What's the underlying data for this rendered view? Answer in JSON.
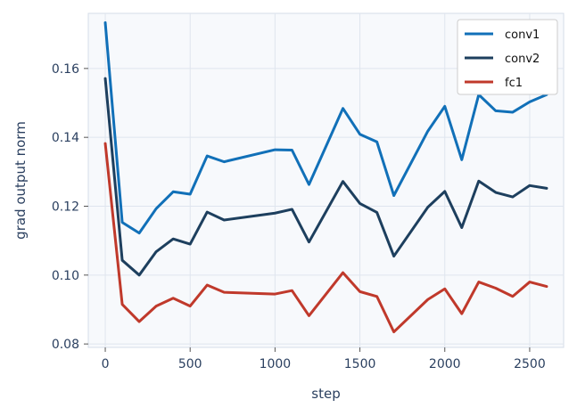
{
  "chart_data": {
    "type": "line",
    "title": "",
    "xlabel": "step",
    "ylabel": "grad output norm",
    "xlim": [
      -100,
      2700
    ],
    "ylim": [
      0.079,
      0.176
    ],
    "xticks": [
      0,
      500,
      1000,
      1500,
      2000,
      2500
    ],
    "xtick_labels": [
      "0",
      "500",
      "1000",
      "1500",
      "2000",
      "2500"
    ],
    "yticks": [
      0.08,
      0.1,
      0.12,
      0.14,
      0.16
    ],
    "ytick_labels": [
      "0.08",
      "0.10",
      "0.12",
      "0.14",
      "0.16"
    ],
    "grid": true,
    "legend_position": "top-right",
    "x": [
      0,
      100,
      200,
      300,
      400,
      500,
      600,
      700,
      1000,
      1100,
      1200,
      1400,
      1500,
      1600,
      1700,
      1900,
      2000,
      2100,
      2200,
      2300,
      2400,
      2500,
      2600
    ],
    "series": [
      {
        "name": "conv1",
        "color": "#1170b8",
        "values": [
          0.1733,
          0.1153,
          0.1122,
          0.1193,
          0.1242,
          0.1235,
          0.1346,
          0.1329,
          0.1364,
          0.1363,
          0.1263,
          0.1484,
          0.1409,
          0.1387,
          0.1231,
          0.1418,
          0.149,
          0.1335,
          0.1524,
          0.1477,
          0.1473,
          0.1503,
          0.1524
        ]
      },
      {
        "name": "conv2",
        "color": "#1d3f5e",
        "values": [
          0.1571,
          0.1043,
          0.1,
          0.1068,
          0.1105,
          0.109,
          0.1183,
          0.116,
          0.118,
          0.1191,
          0.1096,
          0.1272,
          0.1208,
          0.1182,
          0.1055,
          0.1197,
          0.1243,
          0.1138,
          0.1273,
          0.124,
          0.1227,
          0.126,
          0.1252
        ]
      },
      {
        "name": "fc1",
        "color": "#c0392b",
        "values": [
          0.1382,
          0.0915,
          0.0865,
          0.091,
          0.0933,
          0.091,
          0.0971,
          0.095,
          0.0945,
          0.0955,
          0.0882,
          0.1007,
          0.0952,
          0.0938,
          0.0835,
          0.0929,
          0.096,
          0.0888,
          0.098,
          0.0962,
          0.0938,
          0.098,
          0.0967
        ]
      }
    ]
  }
}
